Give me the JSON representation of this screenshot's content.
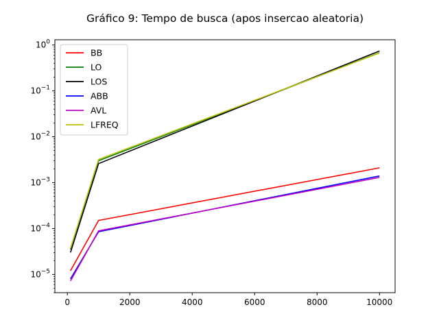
{
  "chart_data": {
    "type": "line",
    "title": "Gráfico 9: Tempo de busca (apos insercao aleatoria)",
    "xlabel": "",
    "ylabel": "",
    "yscale": "log",
    "x": [
      100,
      1000,
      10000
    ],
    "xlim": [
      -400,
      10500
    ],
    "ylim": [
      4e-06,
      1.3
    ],
    "xticks": [
      0,
      2000,
      4000,
      6000,
      8000,
      10000
    ],
    "xtick_labels": [
      "0",
      "2000",
      "4000",
      "6000",
      "8000",
      "10000"
    ],
    "yticks": [
      1e-05,
      0.0001,
      0.001,
      0.01,
      0.1,
      1
    ],
    "ytick_labels": [
      {
        "base": "10",
        "exp": "−5"
      },
      {
        "base": "10",
        "exp": "−4"
      },
      {
        "base": "10",
        "exp": "−3"
      },
      {
        "base": "10",
        "exp": "−2"
      },
      {
        "base": "10",
        "exp": "−1"
      },
      {
        "base": "10",
        "exp": "0"
      }
    ],
    "grid": false,
    "legend_position": "upper-left",
    "series": [
      {
        "name": "BB",
        "color": "#ff0000",
        "values": [
          1.2e-05,
          0.00015,
          0.0021
        ]
      },
      {
        "name": "LO",
        "color": "#008000",
        "values": [
          3.5e-05,
          0.003,
          0.68
        ]
      },
      {
        "name": "LOS",
        "color": "#000000",
        "values": [
          3e-05,
          0.0026,
          0.74
        ]
      },
      {
        "name": "ABB",
        "color": "#0000ff",
        "values": [
          8e-06,
          8.5e-05,
          0.0014
        ]
      },
      {
        "name": "AVL",
        "color": "#bf00bf",
        "values": [
          7.2e-06,
          8.9e-05,
          0.0013
        ]
      },
      {
        "name": "LFREQ",
        "color": "#bfbf00",
        "values": [
          3.7e-05,
          0.0032,
          0.67
        ]
      }
    ]
  }
}
